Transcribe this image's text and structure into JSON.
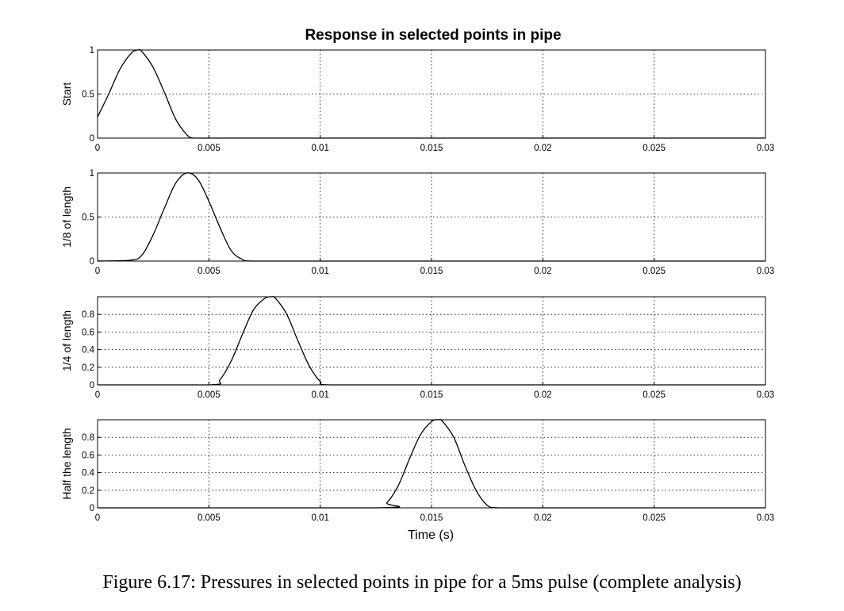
{
  "figure_title": "Response in selected points in pipe",
  "caption": "Figure 6.17: Pressures in selected points in pipe for a 5ms pulse (complete analysis)",
  "chart_data": [
    {
      "type": "line",
      "ylabel": "Start",
      "xlabel": "",
      "xlim": [
        0,
        0.03
      ],
      "ylim": [
        0,
        1
      ],
      "xticks": [
        "0",
        "0.005",
        "0.01",
        "0.015",
        "0.02",
        "0.025",
        "0.03"
      ],
      "yticks": [
        "0",
        "0.5",
        "1"
      ],
      "grid": true,
      "series": [
        {
          "x": [
            0,
            0.0005,
            0.001,
            0.0015,
            0.0018,
            0.002,
            0.0025,
            0.003,
            0.0035,
            0.004,
            0.0043,
            0.005,
            0.01,
            0.015,
            0.02,
            0.025,
            0.03
          ],
          "y": [
            0.24,
            0.5,
            0.78,
            0.96,
            1.0,
            0.98,
            0.8,
            0.52,
            0.22,
            0.04,
            0.0,
            0.0,
            0.0,
            0.0,
            0.0,
            0.0,
            0.0
          ]
        }
      ]
    },
    {
      "type": "line",
      "ylabel": "1/8 of length",
      "xlabel": "",
      "xlim": [
        0,
        0.03
      ],
      "ylim": [
        0,
        1
      ],
      "xticks": [
        "0",
        "0.005",
        "0.01",
        "0.015",
        "0.02",
        "0.025",
        "0.03"
      ],
      "yticks": [
        "0",
        "0.5",
        "1"
      ],
      "grid": true,
      "series": [
        {
          "x": [
            0,
            0.0015,
            0.002,
            0.0025,
            0.003,
            0.0035,
            0.004,
            0.0045,
            0.005,
            0.0055,
            0.006,
            0.0065,
            0.007,
            0.01,
            0.015,
            0.02,
            0.025,
            0.03
          ],
          "y": [
            0.0,
            0.01,
            0.07,
            0.3,
            0.6,
            0.88,
            1.0,
            0.93,
            0.68,
            0.38,
            0.12,
            0.02,
            0.0,
            0.0,
            0.0,
            0.0,
            0.0,
            0.0
          ]
        }
      ]
    },
    {
      "type": "line",
      "ylabel": "1/4 of length",
      "xlabel": "",
      "xlim": [
        0,
        0.03
      ],
      "ylim": [
        0,
        1
      ],
      "xticks": [
        "0",
        "0.005",
        "0.01",
        "0.015",
        "0.02",
        "0.025",
        "0.03"
      ],
      "yticks": [
        "0",
        "0.2",
        "0.4",
        "0.6",
        "0.8"
      ],
      "grid": true,
      "series": [
        {
          "x": [
            0,
            0.005,
            0.0055,
            0.006,
            0.0065,
            0.007,
            0.0075,
            0.0078,
            0.008,
            0.0085,
            0.009,
            0.0095,
            0.01,
            0.0105,
            0.015,
            0.02,
            0.025,
            0.03
          ],
          "y": [
            0.0,
            0.0,
            0.06,
            0.27,
            0.57,
            0.85,
            0.98,
            1.0,
            0.98,
            0.8,
            0.5,
            0.22,
            0.04,
            0.0,
            0.0,
            0.0,
            0.0,
            0.0
          ]
        }
      ]
    },
    {
      "type": "line",
      "ylabel": "Half the length",
      "xlabel": "Time (s)",
      "xlim": [
        0,
        0.03
      ],
      "ylim": [
        0,
        1
      ],
      "xticks": [
        "0",
        "0.005",
        "0.01",
        "0.015",
        "0.02",
        "0.025",
        "0.03"
      ],
      "yticks": [
        "0",
        "0.2",
        "0.4",
        "0.6",
        "0.8"
      ],
      "grid": true,
      "series": [
        {
          "x": [
            0,
            0.0125,
            0.013,
            0.0135,
            0.014,
            0.0145,
            0.015,
            0.0153,
            0.0155,
            0.016,
            0.0165,
            0.017,
            0.0175,
            0.018,
            0.02,
            0.025,
            0.03
          ],
          "y": [
            0.0,
            0.0,
            0.06,
            0.25,
            0.55,
            0.83,
            0.98,
            1.0,
            0.98,
            0.8,
            0.48,
            0.2,
            0.03,
            0.0,
            0.0,
            0.0,
            0.0
          ]
        }
      ]
    }
  ]
}
